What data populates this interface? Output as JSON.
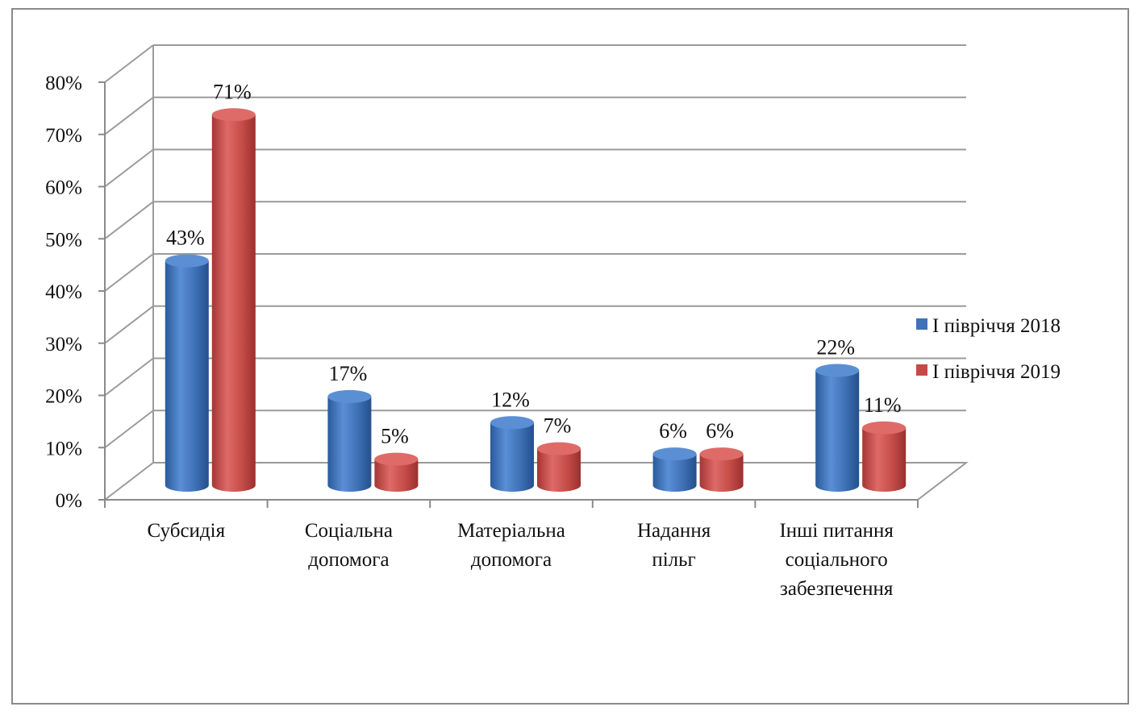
{
  "chart_data": {
    "type": "bar",
    "categories": [
      [
        "Субсидія"
      ],
      [
        "Соціальна",
        "допомога"
      ],
      [
        "Матеріальна",
        "допомога"
      ],
      [
        "Надання",
        "пільг"
      ],
      [
        "Інші питання",
        "соціального",
        "забезпечення"
      ]
    ],
    "series": [
      {
        "name": "І півріччя 2018",
        "color": "#3f72b8",
        "values": [
          43,
          17,
          12,
          6,
          22
        ],
        "labels": [
          "43%",
          "17%",
          "12%",
          "6%",
          "22%"
        ]
      },
      {
        "name": "І півріччя  2019",
        "color": "#c64a48",
        "values": [
          71,
          5,
          7,
          6,
          11
        ],
        "labels": [
          "71%",
          "5%",
          "7%",
          "6%",
          "11%"
        ]
      }
    ],
    "yticks": [
      "0%",
      "10%",
      "20%",
      "30%",
      "40%",
      "50%",
      "60%",
      "70%",
      "80%"
    ],
    "ylim": [
      0,
      80
    ],
    "grid": true,
    "legend": "right",
    "style": "3d-cylinder"
  }
}
